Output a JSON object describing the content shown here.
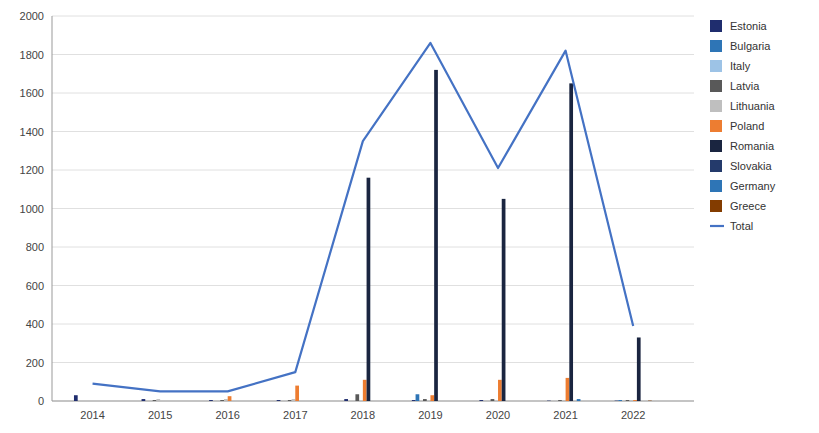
{
  "chart_data": {
    "type": "bar",
    "x": [
      2014,
      2015,
      2016,
      2017,
      2018,
      2019,
      2020,
      2021,
      2022
    ],
    "xlim": [
      2013.4,
      2022.9
    ],
    "xticks": [
      2014,
      2015,
      2016,
      2017,
      2018,
      2019,
      2020,
      2021,
      2022
    ],
    "ylim": [
      0,
      2000
    ],
    "yticks": [
      0,
      200,
      400,
      600,
      800,
      1000,
      1200,
      1400,
      1600,
      1800,
      2000
    ],
    "grid": true,
    "legend": "right",
    "series": [
      {
        "name": "Estonia",
        "color": "#1f2d6e",
        "values": [
          30,
          10,
          5,
          5,
          10,
          5,
          5,
          2,
          2
        ]
      },
      {
        "name": "Bulgaria",
        "color": "#2e75b6",
        "values": [
          0,
          0,
          0,
          0,
          0,
          35,
          0,
          0,
          5
        ]
      },
      {
        "name": "Italy",
        "color": "#9dc3e6",
        "values": [
          0,
          0,
          0,
          0,
          0,
          0,
          0,
          0,
          0
        ]
      },
      {
        "name": "Latvia",
        "color": "#595959",
        "values": [
          0,
          5,
          5,
          5,
          35,
          10,
          10,
          5,
          5
        ]
      },
      {
        "name": "Lithuania",
        "color": "#bfbfbf",
        "values": [
          0,
          10,
          10,
          10,
          0,
          0,
          0,
          5,
          5
        ]
      },
      {
        "name": "Poland",
        "color": "#ed7d31",
        "values": [
          0,
          0,
          25,
          80,
          110,
          30,
          110,
          120,
          5
        ]
      },
      {
        "name": "Romania",
        "color": "#1a2540",
        "values": [
          0,
          0,
          0,
          0,
          1160,
          1720,
          1050,
          1650,
          330
        ]
      },
      {
        "name": "Slovakia",
        "color": "#243a6b",
        "values": [
          0,
          0,
          0,
          0,
          0,
          0,
          0,
          0,
          0
        ]
      },
      {
        "name": "Germany",
        "color": "#2e75b6",
        "values": [
          0,
          0,
          0,
          0,
          0,
          0,
          0,
          10,
          0
        ]
      },
      {
        "name": "Greece",
        "color": "#833c00",
        "values": [
          0,
          0,
          0,
          0,
          0,
          0,
          0,
          0,
          2
        ]
      },
      {
        "name": "Total",
        "type": "line",
        "color": "#4472c4",
        "values": [
          90,
          50,
          50,
          150,
          1350,
          1860,
          1210,
          1820,
          390
        ]
      }
    ]
  }
}
